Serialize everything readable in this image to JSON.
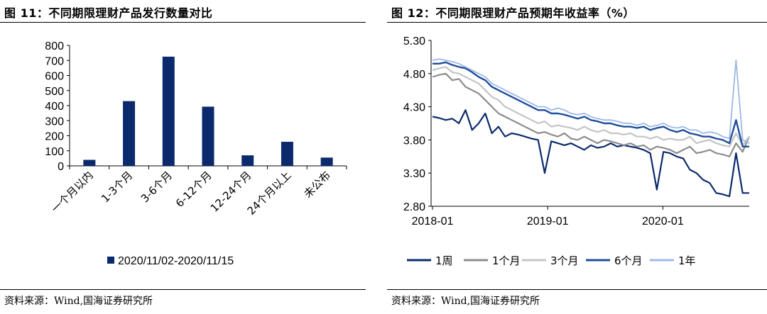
{
  "left": {
    "title": "图 11：不同期限理财产品发行数量对比",
    "source": "资料来源：Wind,国海证券研究所"
  },
  "right": {
    "title": "图 12：不同期限理财产品预期年收益率（%）",
    "source": "资料来源：Wind,国海证券研究所"
  },
  "colors": {
    "navy": "#0b2a6e",
    "gray": "#8c8c8c",
    "lightgray": "#c4c4c4",
    "blue": "#1f4e9a",
    "lightblue": "#9db8e8"
  },
  "chart_data": [
    {
      "type": "bar",
      "categories": [
        "一个月以内",
        "1-3个月",
        "3-6个月",
        "6-12个月",
        "12-24个月",
        "24个月以上",
        "未公布"
      ],
      "series": [
        {
          "name": "2020/11/02-2020/11/15",
          "values": [
            40,
            430,
            725,
            393,
            70,
            160,
            55
          ]
        }
      ],
      "ylim": [
        0,
        800
      ],
      "yticks": [
        "0",
        "100",
        "200",
        "300",
        "400",
        "500",
        "600",
        "700",
        "800"
      ],
      "grid": false,
      "legend": "bottom"
    },
    {
      "type": "line",
      "xlim": [
        "2018-01",
        "2020-10"
      ],
      "xticks": [
        "2018-01",
        "2019-01",
        "2020-01"
      ],
      "ylim": [
        2.8,
        5.3
      ],
      "yticks": [
        "2.80",
        "3.30",
        "3.80",
        "4.30",
        "4.80",
        "5.30"
      ],
      "grid": false,
      "legend": "bottom",
      "series": [
        {
          "name": "1周",
          "values": [
            4.15,
            4.13,
            4.1,
            4.12,
            4.05,
            4.25,
            3.95,
            4.05,
            4.2,
            3.9,
            4.0,
            3.85,
            3.9,
            3.88,
            3.85,
            3.82,
            3.8,
            3.3,
            3.78,
            3.75,
            3.72,
            3.75,
            3.7,
            3.65,
            3.72,
            3.68,
            3.7,
            3.75,
            3.7,
            3.72,
            3.7,
            3.68,
            3.65,
            3.6,
            3.05,
            3.62,
            3.6,
            3.55,
            3.52,
            3.35,
            3.3,
            3.2,
            3.15,
            3.0,
            2.98,
            2.95,
            3.6,
            3.0,
            3.0
          ]
        },
        {
          "name": "1个月",
          "values": [
            4.75,
            4.78,
            4.8,
            4.7,
            4.72,
            4.6,
            4.55,
            4.5,
            4.4,
            4.3,
            4.2,
            4.15,
            4.1,
            4.05,
            4.0,
            3.95,
            3.9,
            3.92,
            3.88,
            3.85,
            3.9,
            3.82,
            3.8,
            3.85,
            3.8,
            3.75,
            3.8,
            3.78,
            3.75,
            3.72,
            3.75,
            3.7,
            3.72,
            3.65,
            3.7,
            3.68,
            3.65,
            3.6,
            3.65,
            3.7,
            3.6,
            3.62,
            3.65,
            3.6,
            3.58,
            3.55,
            3.75,
            3.62,
            3.85
          ]
        },
        {
          "name": "3个月",
          "values": [
            4.85,
            4.88,
            4.9,
            4.82,
            4.8,
            4.75,
            4.7,
            4.65,
            4.55,
            4.45,
            4.4,
            4.3,
            4.25,
            4.2,
            4.15,
            4.1,
            4.05,
            4.08,
            4.0,
            4.02,
            4.0,
            3.98,
            3.95,
            4.0,
            3.95,
            3.92,
            3.95,
            3.9,
            3.9,
            3.88,
            3.9,
            3.85,
            3.85,
            3.82,
            3.85,
            3.8,
            3.82,
            3.8,
            3.8,
            3.85,
            3.75,
            3.78,
            3.8,
            3.75,
            3.72,
            3.7,
            3.9,
            3.72,
            3.85
          ]
        },
        {
          "name": "6个月",
          "values": [
            4.95,
            4.95,
            4.97,
            4.93,
            4.9,
            4.88,
            4.82,
            4.75,
            4.7,
            4.6,
            4.55,
            4.5,
            4.45,
            4.4,
            4.35,
            4.3,
            4.25,
            4.25,
            4.2,
            4.2,
            4.18,
            4.15,
            4.12,
            4.15,
            4.1,
            4.08,
            4.05,
            4.05,
            4.02,
            4.0,
            4.0,
            3.98,
            4.0,
            3.95,
            3.98,
            4.0,
            3.95,
            3.92,
            3.95,
            3.9,
            3.88,
            3.85,
            3.85,
            3.82,
            3.8,
            3.75,
            4.1,
            3.7,
            3.7
          ]
        },
        {
          "name": "1年",
          "values": [
            5.0,
            5.02,
            5.0,
            4.98,
            4.95,
            4.9,
            4.85,
            4.8,
            4.75,
            4.65,
            4.6,
            4.55,
            4.5,
            4.45,
            4.4,
            4.35,
            4.3,
            4.3,
            4.25,
            4.28,
            4.25,
            4.2,
            4.18,
            4.2,
            4.15,
            4.12,
            4.1,
            4.1,
            4.08,
            4.05,
            4.05,
            4.02,
            4.05,
            4.0,
            4.02,
            4.05,
            4.0,
            3.98,
            4.0,
            3.95,
            3.95,
            3.9,
            3.92,
            3.9,
            3.85,
            3.82,
            5.0,
            3.8,
            3.75
          ]
        }
      ]
    }
  ]
}
